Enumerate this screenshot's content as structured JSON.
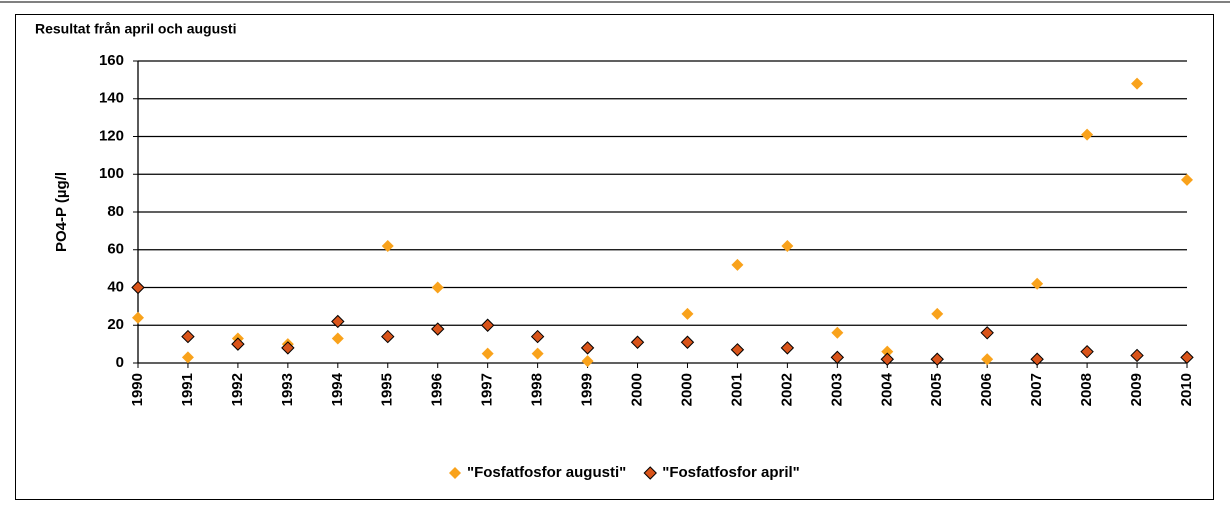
{
  "chart_data": {
    "type": "scatter",
    "title": "Resultat från april och augusti",
    "y_label": "PO4-P (µg/l",
    "categories": [
      "1990",
      "1991",
      "1992",
      "1993",
      "1994",
      "1995",
      "1996",
      "1997",
      "1998",
      "1999",
      "2000",
      "2000",
      "2001",
      "2002",
      "2003",
      "2004",
      "2005",
      "2006",
      "2007",
      "2008",
      "2009",
      "2010"
    ],
    "series": [
      {
        "name": "\"Fosfatfosfor augusti\"",
        "color": "#f9a21b",
        "values": [
          24,
          3,
          13,
          10,
          13,
          62,
          40,
          5,
          5,
          1,
          11,
          26,
          52,
          62,
          16,
          6,
          26,
          2,
          42,
          121,
          148,
          97
        ]
      },
      {
        "name": "\"Fosfatfosfor april\"",
        "color": "#d9541a",
        "values": [
          40,
          14,
          10,
          8,
          22,
          14,
          18,
          20,
          14,
          8,
          11,
          11,
          7,
          8,
          3,
          2,
          2,
          16,
          2,
          6,
          4,
          3
        ]
      }
    ],
    "ylim": [
      0,
      160
    ],
    "yticks": [
      0,
      20,
      40,
      60,
      80,
      100,
      120,
      140,
      160
    ],
    "grid": true,
    "legend": "bottom"
  }
}
